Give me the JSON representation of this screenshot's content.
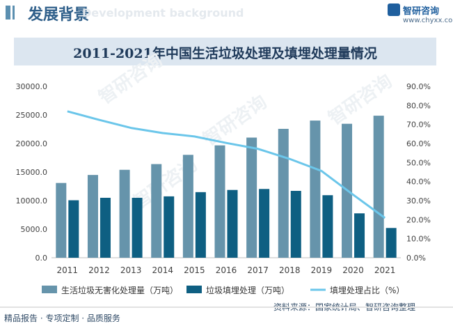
{
  "header": {
    "title": "发展背景",
    "watermark_text": "Development background"
  },
  "logo": {
    "brand": "智研咨询",
    "url": "www.chyxx.com"
  },
  "watermarks": [
    "智研咨询",
    "智研咨询",
    "智研咨询",
    "智研咨询"
  ],
  "chart_data": {
    "type": "bar",
    "title": "2011-2021年中国生活垃圾处理及填埋处理量情况",
    "categories": [
      "2011",
      "2012",
      "2013",
      "2014",
      "2015",
      "2016",
      "2017",
      "2018",
      "2019",
      "2020",
      "2021"
    ],
    "series": [
      {
        "name": "生活垃圾无害化处理量（万吨）",
        "type": "bar",
        "axis": "left",
        "color": "#6694ab",
        "values": [
          13090,
          14490,
          15394,
          16394,
          18013,
          19674,
          21034,
          22565,
          24013,
          23452,
          24869
        ]
      },
      {
        "name": "垃圾填埋处理（万吨）",
        "type": "bar",
        "axis": "left",
        "color": "#0e5f82",
        "values": [
          10064,
          10493,
          10493,
          10744,
          11483,
          11867,
          12038,
          11706,
          10948,
          7772,
          5209
        ]
      },
      {
        "name": "填埋处理占比（%）",
        "type": "line",
        "axis": "right",
        "color": "#6bc6ea",
        "values": [
          76.9,
          72.4,
          68.2,
          65.5,
          63.7,
          60.3,
          57.2,
          51.9,
          45.6,
          33.1,
          20.9
        ]
      }
    ],
    "left_axis": {
      "min": 0,
      "max": 30000,
      "step": 5000,
      "tick_labels": [
        "0.0",
        "5000.0",
        "10000.0",
        "15000.0",
        "20000.0",
        "25000.0",
        "30000.0"
      ]
    },
    "right_axis": {
      "min": 0,
      "max": 90,
      "step": 10,
      "tick_labels": [
        "0.0%",
        "10.0%",
        "20.0%",
        "30.0%",
        "40.0%",
        "50.0%",
        "60.0%",
        "70.0%",
        "80.0%",
        "90.0%"
      ]
    },
    "grid": false,
    "legend_position": "bottom"
  },
  "footer": {
    "left_text": "精品报告 · 专项定制 · 品质服务",
    "source_text": "资料来源：国家统计局、智研咨询整理"
  }
}
